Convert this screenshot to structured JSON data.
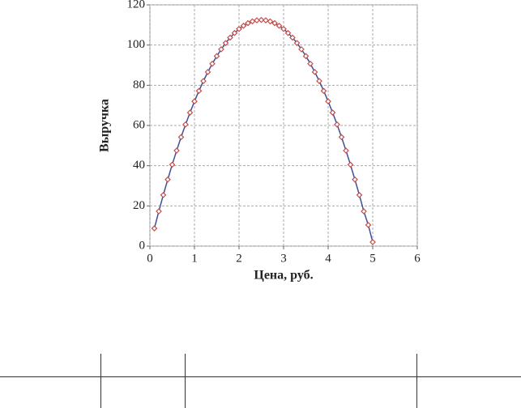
{
  "chart_data": {
    "type": "line",
    "x_label": "Цена, руб.",
    "y_label": "Выручка",
    "x": [
      0.1,
      0.2,
      0.3,
      0.4,
      0.5,
      0.6,
      0.7,
      0.8,
      0.9,
      1.0,
      1.1,
      1.2,
      1.3,
      1.4,
      1.5,
      1.6,
      1.7,
      1.8,
      1.9,
      2.0,
      2.1,
      2.2,
      2.3,
      2.4,
      2.5,
      2.6,
      2.7,
      2.8,
      2.9,
      3.0,
      3.1,
      3.2,
      3.3,
      3.4,
      3.5,
      3.6,
      3.7,
      3.8,
      3.9,
      4.0,
      4.1,
      4.2,
      4.3,
      4.4,
      4.5,
      4.6,
      4.7,
      4.8,
      4.9,
      5.0
    ],
    "series": [
      {
        "name": "Выручка",
        "color": "#3f4f95",
        "marker_color": "#c0504d",
        "values": [
          8.8,
          17.3,
          25.4,
          33.1,
          40.5,
          47.5,
          54.2,
          60.5,
          66.4,
          72,
          77.2,
          82.1,
          86.6,
          90.7,
          94.5,
          97.9,
          101,
          103.7,
          106,
          108,
          109.6,
          110.9,
          111.8,
          112.3,
          112.5,
          112.3,
          111.8,
          110.9,
          109.6,
          108,
          106,
          103.7,
          101,
          97.9,
          94.5,
          90.7,
          86.6,
          82.1,
          77.2,
          72,
          66.4,
          60.5,
          54.2,
          47.5,
          40.5,
          33.1,
          25.4,
          17.3,
          10.5,
          2
        ]
      }
    ],
    "xlim": [
      0,
      6
    ],
    "xticks": [
      0,
      1,
      2,
      3,
      4,
      5,
      6
    ],
    "ylim": [
      0,
      120
    ],
    "yticks": [
      0,
      20,
      40,
      60,
      80,
      100,
      120
    ],
    "grid": true
  }
}
